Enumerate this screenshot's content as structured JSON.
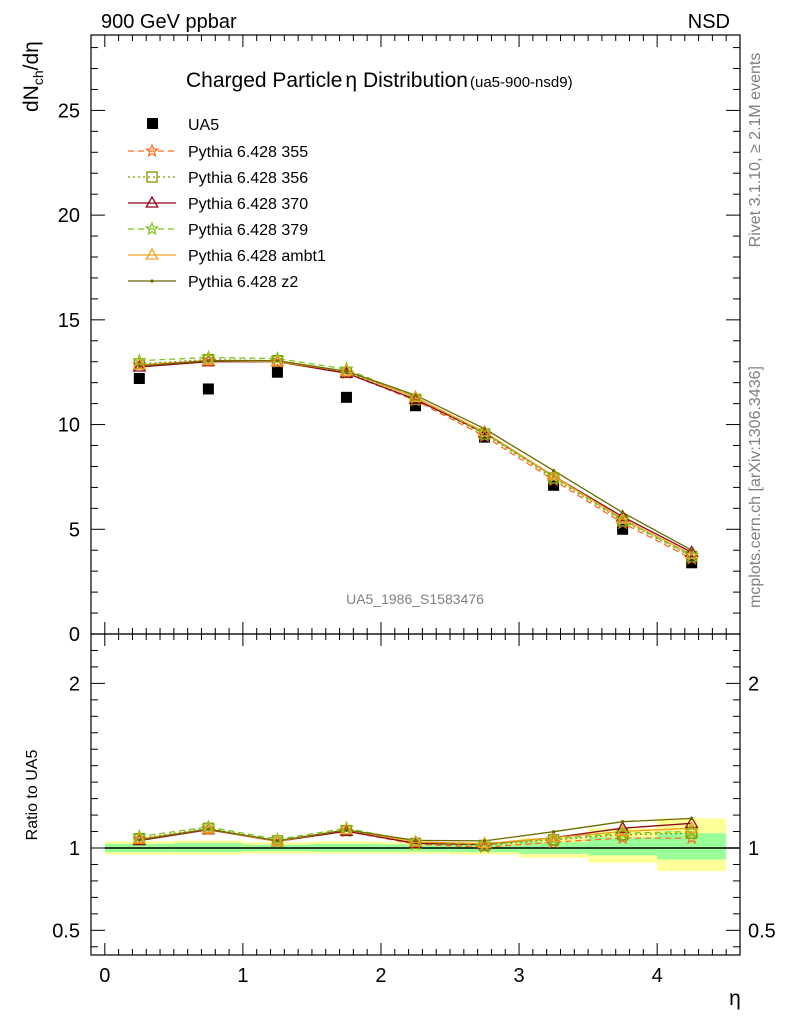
{
  "header": {
    "left": "900 GeV ppbar",
    "right": "NSD"
  },
  "side_text": {
    "rivet": "Rivet 3.1.10, ≥ 2.1M events",
    "mcplots": "mcplots.cern.ch [arXiv:1306.3436]"
  },
  "chart_data": [
    {
      "type": "scatter",
      "title": "Charged Particle",
      "title_symbol": "η",
      "title_suffix": " Distribution",
      "title_tag": "(ua5-900-nsd9)",
      "ylabel": {
        "main": "dN",
        "sub": "ch",
        "tail": "/dη"
      },
      "xlabel": "η",
      "xlim": [
        -0.1,
        4.6
      ],
      "ylim": [
        0,
        28.6
      ],
      "yticks": [
        0,
        5,
        10,
        15,
        20,
        25
      ],
      "ytick_labels": [
        "0",
        "5",
        "10",
        "15",
        "20",
        "25"
      ],
      "watermark": "UA5_1986_S1583476",
      "x": [
        0.25,
        0.75,
        1.25,
        1.75,
        2.25,
        2.75,
        3.25,
        3.75,
        4.25
      ],
      "reference": {
        "name": "UA5",
        "color": "#000000",
        "values": [
          12.2,
          11.7,
          12.5,
          11.3,
          10.9,
          9.4,
          7.1,
          5.0,
          3.4
        ]
      },
      "series": [
        {
          "name": "Pythia 6.428 355",
          "color": "#ff6a1a",
          "dash": "6,4",
          "marker": "star",
          "values": [
            12.85,
            13.05,
            13.0,
            12.45,
            11.15,
            9.45,
            7.35,
            5.3,
            3.6
          ]
        },
        {
          "name": "Pythia 6.428 356",
          "color": "#7a9a00",
          "dash": "2,3",
          "marker": "square",
          "values": [
            12.9,
            13.1,
            13.05,
            12.5,
            11.2,
            9.55,
            7.45,
            5.4,
            3.7
          ]
        },
        {
          "name": "Pythia 6.428 370",
          "color": "#8b0a1a",
          "dash": "",
          "marker": "triangle",
          "values": [
            12.75,
            13.0,
            13.0,
            12.45,
            11.2,
            9.6,
            7.55,
            5.6,
            3.9
          ]
        },
        {
          "name": "Pythia 6.428 379",
          "color": "#7fc41c",
          "dash": "6,4",
          "marker": "star",
          "values": [
            13.05,
            13.2,
            13.15,
            12.65,
            11.3,
            9.6,
            7.5,
            5.45,
            3.75
          ]
        },
        {
          "name": "Pythia 6.428 ambt1",
          "color": "#f0a020",
          "dash": "",
          "marker": "triangle",
          "values": [
            12.85,
            13.05,
            13.0,
            12.55,
            11.3,
            9.65,
            7.55,
            5.5,
            3.8
          ]
        },
        {
          "name": "Pythia 6.428 z2",
          "color": "#6b6b00",
          "dash": "",
          "marker": "dot",
          "values": [
            12.8,
            13.05,
            13.05,
            12.55,
            11.4,
            9.8,
            7.8,
            5.8,
            4.0
          ]
        }
      ]
    },
    {
      "type": "scatter",
      "ylabel": "Ratio to UA5",
      "xlabel": "η",
      "xlim": [
        -0.1,
        4.6
      ],
      "ylim": [
        0.35,
        2.3
      ],
      "yticks": [
        0.5,
        1,
        2
      ],
      "ytick_labels": [
        "0.5",
        "1",
        "2"
      ],
      "xticks": [
        0,
        1,
        2,
        3,
        4
      ],
      "xtick_labels": [
        "0",
        "1",
        "2",
        "3",
        "4"
      ],
      "band_x": [
        0,
        0.5,
        1.0,
        1.5,
        2.0,
        2.5,
        3.0,
        3.5,
        4.0,
        4.5
      ],
      "band_yellow": [
        [
          0.96,
          1.04
        ],
        [
          0.96,
          1.045
        ],
        [
          0.965,
          1.035
        ],
        [
          0.965,
          1.04
        ],
        [
          0.965,
          1.035
        ],
        [
          0.96,
          1.035
        ],
        [
          0.94,
          1.06
        ],
        [
          0.91,
          1.12
        ],
        [
          0.86,
          1.18
        ]
      ],
      "band_green": [
        [
          0.975,
          1.025
        ],
        [
          0.975,
          1.03
        ],
        [
          0.98,
          1.02
        ],
        [
          0.978,
          1.025
        ],
        [
          0.978,
          1.022
        ],
        [
          0.975,
          1.022
        ],
        [
          0.965,
          1.035
        ],
        [
          0.955,
          1.065
        ],
        [
          0.93,
          1.09
        ]
      ],
      "x": [
        0.25,
        0.75,
        1.25,
        1.75,
        2.25,
        2.75,
        3.25,
        3.75,
        4.25
      ],
      "series": [
        {
          "name": "Pythia 6.428 355",
          "color": "#ff6a1a",
          "dash": "6,4",
          "marker": "star",
          "values": [
            1.053,
            1.115,
            1.04,
            1.102,
            1.023,
            1.005,
            1.035,
            1.06,
            1.06
          ]
        },
        {
          "name": "Pythia 6.428 356",
          "color": "#7a9a00",
          "dash": "2,3",
          "marker": "square",
          "values": [
            1.057,
            1.12,
            1.044,
            1.106,
            1.028,
            1.016,
            1.05,
            1.08,
            1.09
          ]
        },
        {
          "name": "Pythia 6.428 370",
          "color": "#8b0a1a",
          "dash": "",
          "marker": "triangle",
          "values": [
            1.045,
            1.111,
            1.04,
            1.102,
            1.028,
            1.021,
            1.063,
            1.12,
            1.15
          ]
        },
        {
          "name": "Pythia 6.428 379",
          "color": "#7fc41c",
          "dash": "6,4",
          "marker": "star",
          "values": [
            1.07,
            1.128,
            1.052,
            1.12,
            1.037,
            1.021,
            1.056,
            1.09,
            1.1
          ]
        },
        {
          "name": "Pythia 6.428 ambt1",
          "color": "#f0a020",
          "dash": "",
          "marker": "triangle",
          "values": [
            1.053,
            1.115,
            1.04,
            1.11,
            1.037,
            1.027,
            1.063,
            1.1,
            1.12
          ]
        },
        {
          "name": "Pythia 6.428 z2",
          "color": "#6b6b00",
          "dash": "",
          "marker": "dot",
          "values": [
            1.049,
            1.115,
            1.044,
            1.11,
            1.046,
            1.043,
            1.099,
            1.16,
            1.18
          ]
        }
      ]
    }
  ]
}
